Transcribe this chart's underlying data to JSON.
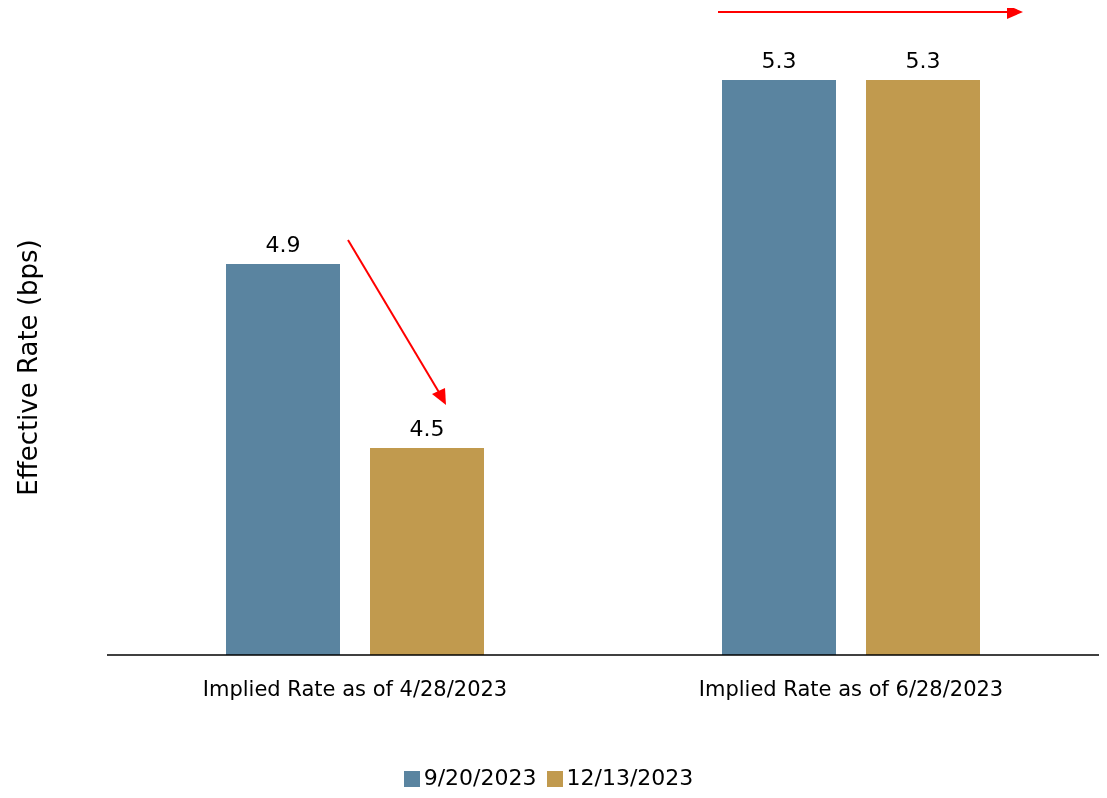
{
  "chart_data": {
    "type": "bar",
    "ylabel": "Effective Rate (bps)",
    "categories": [
      "Implied Rate as of 4/28/2023",
      "Implied Rate as of 6/28/2023"
    ],
    "series": [
      {
        "name": "9/20/2023",
        "color": "#5a84a0",
        "values": [
          4.9,
          5.3
        ]
      },
      {
        "name": "12/13/2023",
        "color": "#c19a4e",
        "values": [
          4.5,
          5.3
        ]
      }
    ],
    "ylim": [
      4.05,
      5.3
    ],
    "data_labels": true,
    "legend": "bottom",
    "grid": false
  }
}
